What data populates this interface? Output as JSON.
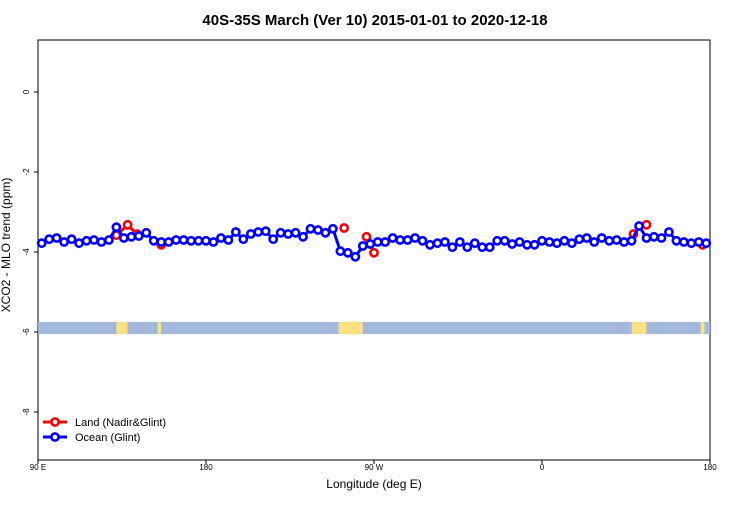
{
  "chart_data": {
    "type": "scatter",
    "title": "40S-35S March (Ver 10)   2015-01-01 to 2020-12-18",
    "xlabel": "Longitude (deg E)",
    "ylabel": "XCO2 - MLO trend (ppm)",
    "xlim": [
      90,
      450
    ],
    "ylim": [
      -9.2,
      1.3
    ],
    "x_ticks": [
      {
        "value": 90,
        "label": "90 E"
      },
      {
        "value": 180,
        "label": "180"
      },
      {
        "value": 270,
        "label": "90 W"
      },
      {
        "value": 360,
        "label": "0"
      },
      {
        "value": 450,
        "label": "180"
      }
    ],
    "y_ticks": [
      {
        "value": 0,
        "label": "0"
      },
      {
        "value": -2,
        "label": "-2"
      },
      {
        "value": -4,
        "label": "-4"
      },
      {
        "value": -6,
        "label": "-6"
      },
      {
        "value": -8,
        "label": "-8"
      }
    ],
    "legend": {
      "position": "bottom-left"
    },
    "colors": {
      "land": "#ff0000",
      "ocean": "#0000ff",
      "land_strip": "#ffe082",
      "ocean_strip": "#a3b9dc"
    },
    "series": [
      {
        "name": "Land (Nadir&Glint)",
        "color": "#ff0000",
        "points": [
          [
            132,
            -3.58
          ],
          [
            138,
            -3.32
          ],
          [
            143,
            -3.55
          ],
          [
            156,
            -3.82
          ],
          [
            254,
            -3.4
          ],
          [
            266,
            -3.62
          ],
          [
            270,
            -4.02
          ],
          [
            409,
            -3.55
          ],
          [
            416,
            -3.32
          ],
          [
            446,
            -3.82
          ]
        ]
      },
      {
        "name": "Ocean (Glint)",
        "color": "#0000ff",
        "points": [
          [
            92,
            -3.78
          ],
          [
            96,
            -3.68
          ],
          [
            100,
            -3.65
          ],
          [
            104,
            -3.75
          ],
          [
            108,
            -3.68
          ],
          [
            112,
            -3.78
          ],
          [
            116,
            -3.72
          ],
          [
            120,
            -3.7
          ],
          [
            124,
            -3.75
          ],
          [
            128,
            -3.7
          ],
          [
            132,
            -3.38
          ],
          [
            136,
            -3.65
          ],
          [
            140,
            -3.62
          ],
          [
            144,
            -3.6
          ],
          [
            148,
            -3.52
          ],
          [
            152,
            -3.72
          ],
          [
            156,
            -3.75
          ],
          [
            160,
            -3.75
          ],
          [
            164,
            -3.7
          ],
          [
            168,
            -3.7
          ],
          [
            172,
            -3.72
          ],
          [
            176,
            -3.72
          ],
          [
            180,
            -3.72
          ],
          [
            184,
            -3.75
          ],
          [
            188,
            -3.65
          ],
          [
            192,
            -3.7
          ],
          [
            196,
            -3.5
          ],
          [
            200,
            -3.68
          ],
          [
            204,
            -3.55
          ],
          [
            208,
            -3.5
          ],
          [
            212,
            -3.48
          ],
          [
            216,
            -3.68
          ],
          [
            220,
            -3.52
          ],
          [
            224,
            -3.55
          ],
          [
            228,
            -3.52
          ],
          [
            232,
            -3.62
          ],
          [
            236,
            -3.42
          ],
          [
            240,
            -3.45
          ],
          [
            244,
            -3.52
          ],
          [
            248,
            -3.42
          ],
          [
            252,
            -3.98
          ],
          [
            256,
            -4.02
          ],
          [
            260,
            -4.12
          ],
          [
            264,
            -3.85
          ],
          [
            268,
            -3.8
          ],
          [
            272,
            -3.75
          ],
          [
            276,
            -3.75
          ],
          [
            280,
            -3.65
          ],
          [
            284,
            -3.7
          ],
          [
            288,
            -3.7
          ],
          [
            292,
            -3.65
          ],
          [
            296,
            -3.72
          ],
          [
            300,
            -3.82
          ],
          [
            304,
            -3.78
          ],
          [
            308,
            -3.75
          ],
          [
            312,
            -3.88
          ],
          [
            316,
            -3.75
          ],
          [
            320,
            -3.88
          ],
          [
            324,
            -3.78
          ],
          [
            328,
            -3.88
          ],
          [
            332,
            -3.88
          ],
          [
            336,
            -3.72
          ],
          [
            340,
            -3.72
          ],
          [
            344,
            -3.8
          ],
          [
            348,
            -3.75
          ],
          [
            352,
            -3.82
          ],
          [
            356,
            -3.82
          ],
          [
            360,
            -3.72
          ],
          [
            364,
            -3.75
          ],
          [
            368,
            -3.78
          ],
          [
            372,
            -3.72
          ],
          [
            376,
            -3.78
          ],
          [
            380,
            -3.68
          ],
          [
            384,
            -3.65
          ],
          [
            388,
            -3.75
          ],
          [
            392,
            -3.65
          ],
          [
            396,
            -3.72
          ],
          [
            400,
            -3.7
          ],
          [
            404,
            -3.75
          ],
          [
            408,
            -3.72
          ],
          [
            412,
            -3.35
          ],
          [
            416,
            -3.65
          ],
          [
            420,
            -3.62
          ],
          [
            424,
            -3.65
          ],
          [
            428,
            -3.5
          ],
          [
            432,
            -3.72
          ],
          [
            436,
            -3.75
          ],
          [
            440,
            -3.78
          ],
          [
            444,
            -3.75
          ],
          [
            448,
            -3.78
          ]
        ]
      }
    ],
    "land_mask": {
      "y": -5.9,
      "segments": [
        [
          132,
          138
        ],
        [
          154,
          156
        ],
        [
          251,
          264
        ],
        [
          408,
          416
        ],
        [
          445,
          447
        ]
      ]
    }
  }
}
